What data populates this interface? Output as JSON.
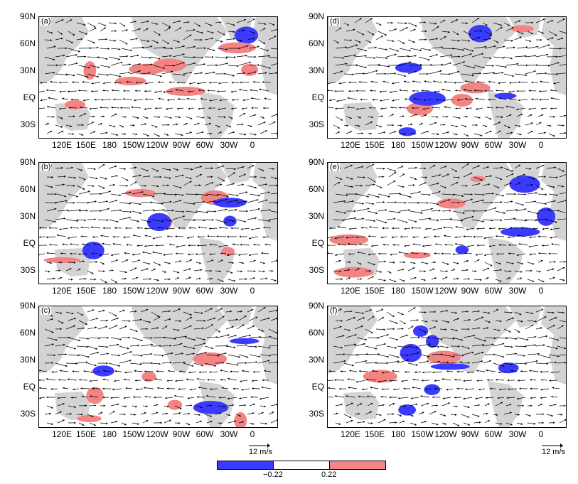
{
  "panels": [
    {
      "id": "a",
      "label": "(a)"
    },
    {
      "id": "b",
      "label": "(b)"
    },
    {
      "id": "c",
      "label": "(c)"
    },
    {
      "id": "d",
      "label": "(d)"
    },
    {
      "id": "e",
      "label": "(e)"
    },
    {
      "id": "f",
      "label": "(f)"
    }
  ],
  "axes": {
    "lat_labels": [
      "90N",
      "60N",
      "30N",
      "EQ",
      "30S"
    ],
    "lon_labels": [
      "120E",
      "150E",
      "180",
      "150W",
      "120W",
      "90W",
      "60W",
      "30W",
      "0"
    ]
  },
  "reference_vector": {
    "label": "12 m/s"
  },
  "colorbar": {
    "tick_low": "−0.22",
    "tick_high": "0.22",
    "colors": {
      "negative": "#3b3bff",
      "neutral": "#ffffff",
      "positive": "#f48484"
    }
  },
  "colors": {
    "land": "#d3d3d3",
    "arrow": "#000000"
  }
}
